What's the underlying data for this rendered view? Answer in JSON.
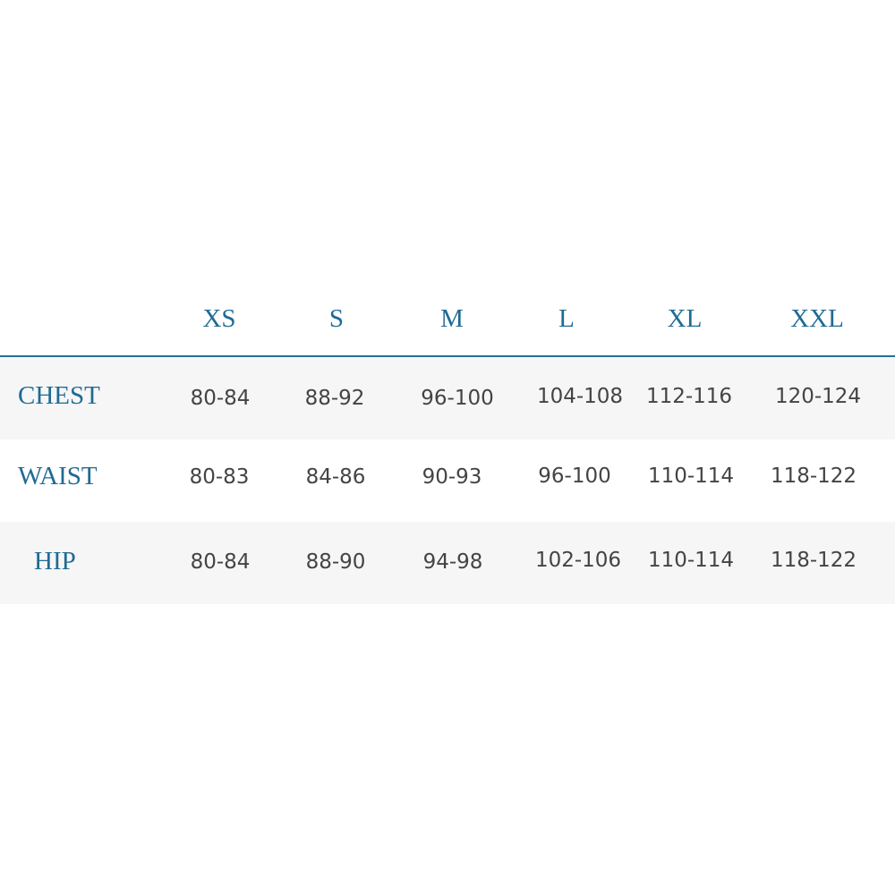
{
  "sizes": [
    "XS",
    "S",
    "M",
    "L",
    "XL",
    "XXL"
  ],
  "rows": [
    {
      "label": "CHEST",
      "values": [
        "80-84",
        "88-92",
        "96-100",
        "104-108",
        "112-116",
        "120-124"
      ]
    },
    {
      "label": "WAIST",
      "values": [
        "80-83",
        "84-86",
        "90-93",
        "96-100",
        "110-114",
        "118-122"
      ]
    },
    {
      "label": "HIP",
      "values": [
        "80-84",
        "88-90",
        "94-98",
        "102-106",
        "110-114",
        "118-122"
      ]
    }
  ],
  "colors": {
    "accent": "#1f6a94",
    "text": "#444444",
    "row_shade": "#f6f6f6"
  }
}
